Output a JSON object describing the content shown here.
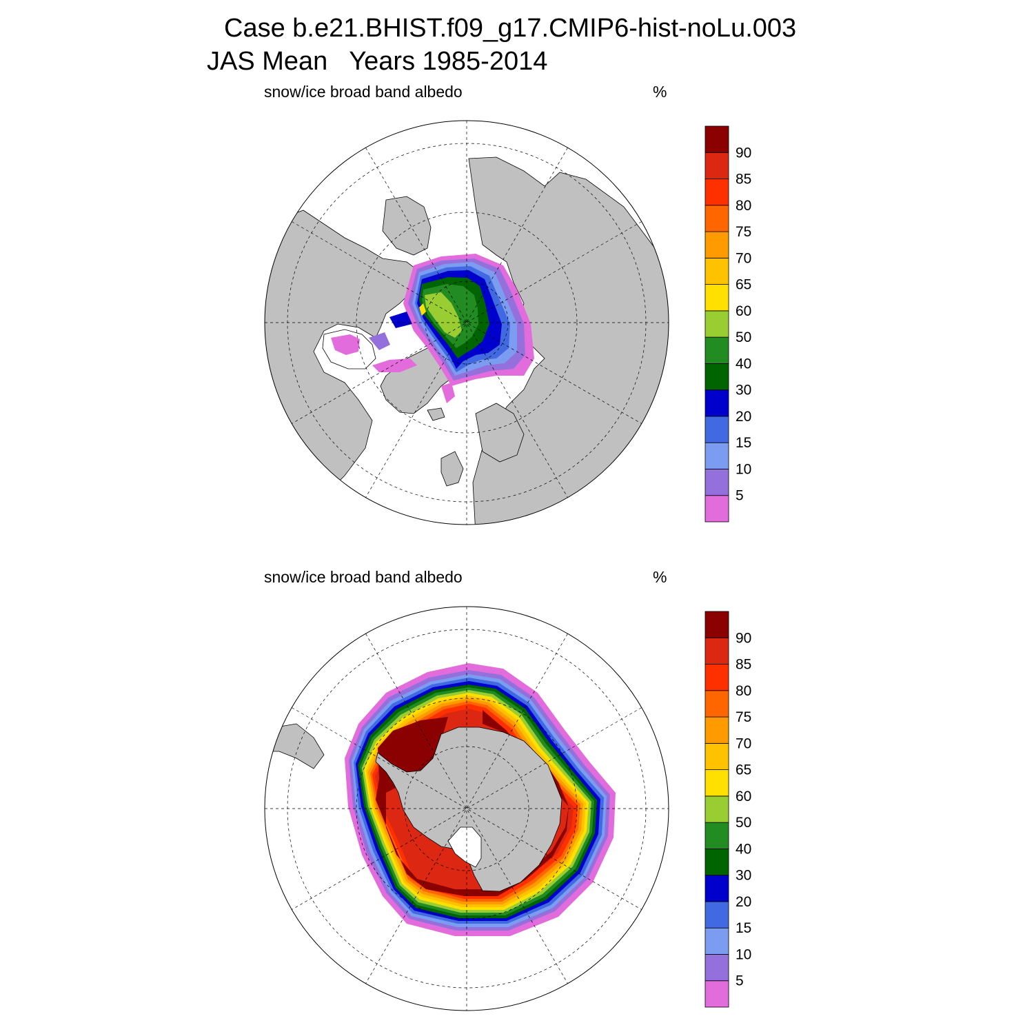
{
  "title": {
    "case": "Case b.e21.BHIST.f09_g17.CMIP6-hist-noLu.003",
    "period": "JAS Mean   Years 1985-2014"
  },
  "colors": {
    "land": "#c0c0c0",
    "ocean": "#ffffff",
    "levels": [
      "#e36cdc",
      "#9370db",
      "#7b9cf0",
      "#4169e1",
      "#0000cd",
      "#006400",
      "#228b22",
      "#9acd32",
      "#ffe000",
      "#ffc200",
      "#ff9a00",
      "#ff6600",
      "#ff3000",
      "#dc2812",
      "#8b0000"
    ]
  },
  "chart_data": [
    {
      "type": "polar-map",
      "hemisphere": "north",
      "variable": "snow/ice broad band albedo",
      "units": "%",
      "colorbar_labels": [
        "5",
        "10",
        "15",
        "20",
        "30",
        "40",
        "50",
        "60",
        "65",
        "70",
        "75",
        "80",
        "85",
        "90"
      ],
      "field_max_level": 60
    },
    {
      "type": "polar-map",
      "hemisphere": "south",
      "variable": "snow/ice broad band albedo",
      "units": "%",
      "colorbar_labels": [
        "5",
        "10",
        "15",
        "20",
        "30",
        "40",
        "50",
        "60",
        "65",
        "70",
        "75",
        "80",
        "85",
        "90"
      ],
      "field_max_level": 90
    }
  ]
}
